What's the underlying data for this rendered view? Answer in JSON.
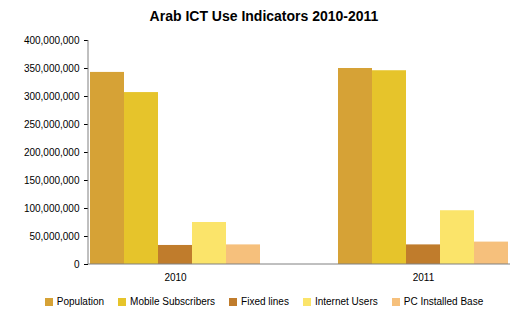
{
  "chart_data": {
    "type": "bar",
    "title": "Arab ICT Use Indicators 2010-2011",
    "categories": [
      "2010",
      "2011"
    ],
    "series": [
      {
        "name": "Population",
        "color": "#d6a236",
        "values": [
          343000000,
          350000000
        ]
      },
      {
        "name": "Mobile Subscribers",
        "color": "#e6c42b",
        "values": [
          307000000,
          346000000
        ]
      },
      {
        "name": "Fixed lines",
        "color": "#c07c2c",
        "values": [
          34000000,
          35000000
        ]
      },
      {
        "name": "Internet Users",
        "color": "#fbe46a",
        "values": [
          75000000,
          96000000
        ]
      },
      {
        "name": "PC Installed Base",
        "color": "#f6c07c",
        "values": [
          35000000,
          40000000
        ]
      }
    ],
    "ylim": [
      0,
      400000000
    ],
    "yticks": [
      0,
      {
        "value": 50000000,
        "label": "50,000,000"
      },
      {
        "value": 100000000,
        "label": "100,000,000"
      },
      {
        "value": 150000000,
        "label": "150,000,000"
      },
      {
        "value": 200000000,
        "label": "200,000,000"
      },
      {
        "value": 250000000,
        "label": "250,000,000"
      },
      {
        "value": 300000000,
        "label": "300,000,000"
      },
      {
        "value": 350000000,
        "label": "350,000,000"
      },
      {
        "value": 400000000,
        "label": "400,000,000"
      }
    ],
    "grid": false,
    "legend": "bottom"
  }
}
